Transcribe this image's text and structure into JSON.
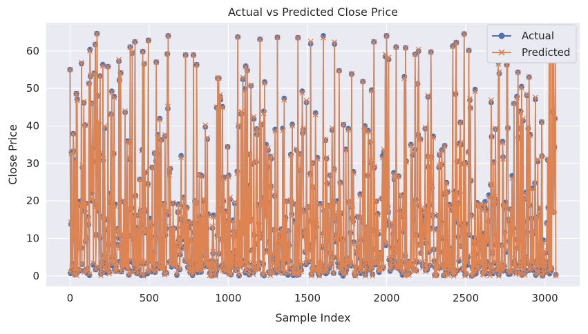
{
  "chart_data": {
    "type": "line",
    "title": "Actual vs Predicted Close Price",
    "xlabel": "Sample Index",
    "ylabel": "Close Price",
    "xlim": [
      -150,
      3220
    ],
    "ylim": [
      -2.8,
      67.5
    ],
    "xticks": [
      0,
      500,
      1000,
      1500,
      2000,
      2500,
      3000
    ],
    "xtick_labels": [
      "0",
      "500",
      "1000",
      "1500",
      "2000",
      "2500",
      "3000"
    ],
    "yticks": [
      0,
      10,
      20,
      30,
      40,
      50,
      60
    ],
    "ytick_labels": [
      "0",
      "10",
      "20",
      "30",
      "40",
      "50",
      "60"
    ],
    "grid": true,
    "legend_position": "upper right",
    "n_points": 3070,
    "y_range": [
      0,
      65
    ],
    "series": [
      {
        "name": "Actual",
        "color": "#4c72b0",
        "marker": "circle",
        "peaks": [
          {
            "x": 0,
            "y": 55.0
          },
          {
            "x": 20,
            "y": 37.9
          },
          {
            "x": 40,
            "y": 48.6
          },
          {
            "x": 95,
            "y": 40.2
          },
          {
            "x": 120,
            "y": 51.3
          },
          {
            "x": 140,
            "y": 46.0
          },
          {
            "x": 160,
            "y": 61.7
          },
          {
            "x": 170,
            "y": 64.6
          },
          {
            "x": 190,
            "y": 53.3
          },
          {
            "x": 240,
            "y": 55.8
          },
          {
            "x": 320,
            "y": 54.1
          },
          {
            "x": 380,
            "y": 61.0
          },
          {
            "x": 410,
            "y": 62.4
          },
          {
            "x": 460,
            "y": 59.8
          },
          {
            "x": 495,
            "y": 62.8
          },
          {
            "x": 545,
            "y": 57.0
          },
          {
            "x": 620,
            "y": 64.0
          },
          {
            "x": 730,
            "y": 58.9
          },
          {
            "x": 780,
            "y": 58.9
          },
          {
            "x": 800,
            "y": 56.3
          },
          {
            "x": 940,
            "y": 52.7
          },
          {
            "x": 1060,
            "y": 63.7
          },
          {
            "x": 1120,
            "y": 54.8
          },
          {
            "x": 1200,
            "y": 63.1
          },
          {
            "x": 1310,
            "y": 63.6
          },
          {
            "x": 1440,
            "y": 63.5
          },
          {
            "x": 1520,
            "y": 61.9
          },
          {
            "x": 1600,
            "y": 64.0
          },
          {
            "x": 1700,
            "y": 54.7
          },
          {
            "x": 1850,
            "y": 51.8
          },
          {
            "x": 1920,
            "y": 62.4
          },
          {
            "x": 2000,
            "y": 64.0
          },
          {
            "x": 2060,
            "y": 61.0
          },
          {
            "x": 2120,
            "y": 60.8
          },
          {
            "x": 2180,
            "y": 59.1
          },
          {
            "x": 2280,
            "y": 59.7
          },
          {
            "x": 2440,
            "y": 62.2
          },
          {
            "x": 2490,
            "y": 64.5
          },
          {
            "x": 2520,
            "y": 60.1
          },
          {
            "x": 2760,
            "y": 56.3
          },
          {
            "x": 2830,
            "y": 54.3
          },
          {
            "x": 2900,
            "y": 53.0
          },
          {
            "x": 2980,
            "y": 41.0
          },
          {
            "x": 3050,
            "y": 43.8
          },
          {
            "x": 3060,
            "y": 34.3
          }
        ]
      },
      {
        "name": "Predicted",
        "color": "#dd8452",
        "marker": "x",
        "peaks": [
          {
            "x": 0,
            "y": 55.0
          },
          {
            "x": 20,
            "y": 37.9
          },
          {
            "x": 40,
            "y": 48.6
          },
          {
            "x": 95,
            "y": 40.2
          },
          {
            "x": 120,
            "y": 51.3
          },
          {
            "x": 140,
            "y": 46.0
          },
          {
            "x": 160,
            "y": 61.7
          },
          {
            "x": 170,
            "y": 64.6
          },
          {
            "x": 190,
            "y": 53.3
          },
          {
            "x": 240,
            "y": 55.8
          },
          {
            "x": 320,
            "y": 54.1
          },
          {
            "x": 380,
            "y": 61.0
          },
          {
            "x": 410,
            "y": 62.4
          },
          {
            "x": 460,
            "y": 59.8
          },
          {
            "x": 495,
            "y": 62.8
          },
          {
            "x": 545,
            "y": 57.0
          },
          {
            "x": 620,
            "y": 64.0
          },
          {
            "x": 730,
            "y": 58.9
          },
          {
            "x": 780,
            "y": 58.9
          },
          {
            "x": 800,
            "y": 56.3
          },
          {
            "x": 940,
            "y": 52.7
          },
          {
            "x": 1060,
            "y": 63.7
          },
          {
            "x": 1120,
            "y": 54.8
          },
          {
            "x": 1200,
            "y": 63.1
          },
          {
            "x": 1310,
            "y": 63.6
          },
          {
            "x": 1440,
            "y": 63.5
          },
          {
            "x": 1520,
            "y": 62.5
          },
          {
            "x": 1600,
            "y": 63.5
          },
          {
            "x": 1700,
            "y": 54.7
          },
          {
            "x": 1850,
            "y": 51.8
          },
          {
            "x": 1920,
            "y": 62.4
          },
          {
            "x": 2000,
            "y": 64.0
          },
          {
            "x": 2060,
            "y": 61.0
          },
          {
            "x": 2120,
            "y": 60.8
          },
          {
            "x": 2180,
            "y": 59.1
          },
          {
            "x": 2280,
            "y": 59.7
          },
          {
            "x": 2440,
            "y": 62.2
          },
          {
            "x": 2490,
            "y": 64.5
          },
          {
            "x": 2520,
            "y": 60.1
          },
          {
            "x": 2760,
            "y": 56.3
          },
          {
            "x": 2830,
            "y": 54.3
          },
          {
            "x": 2900,
            "y": 53.0
          },
          {
            "x": 2980,
            "y": 41.0
          },
          {
            "x": 3050,
            "y": 43.8
          },
          {
            "x": 3060,
            "y": 34.3
          }
        ]
      }
    ]
  }
}
